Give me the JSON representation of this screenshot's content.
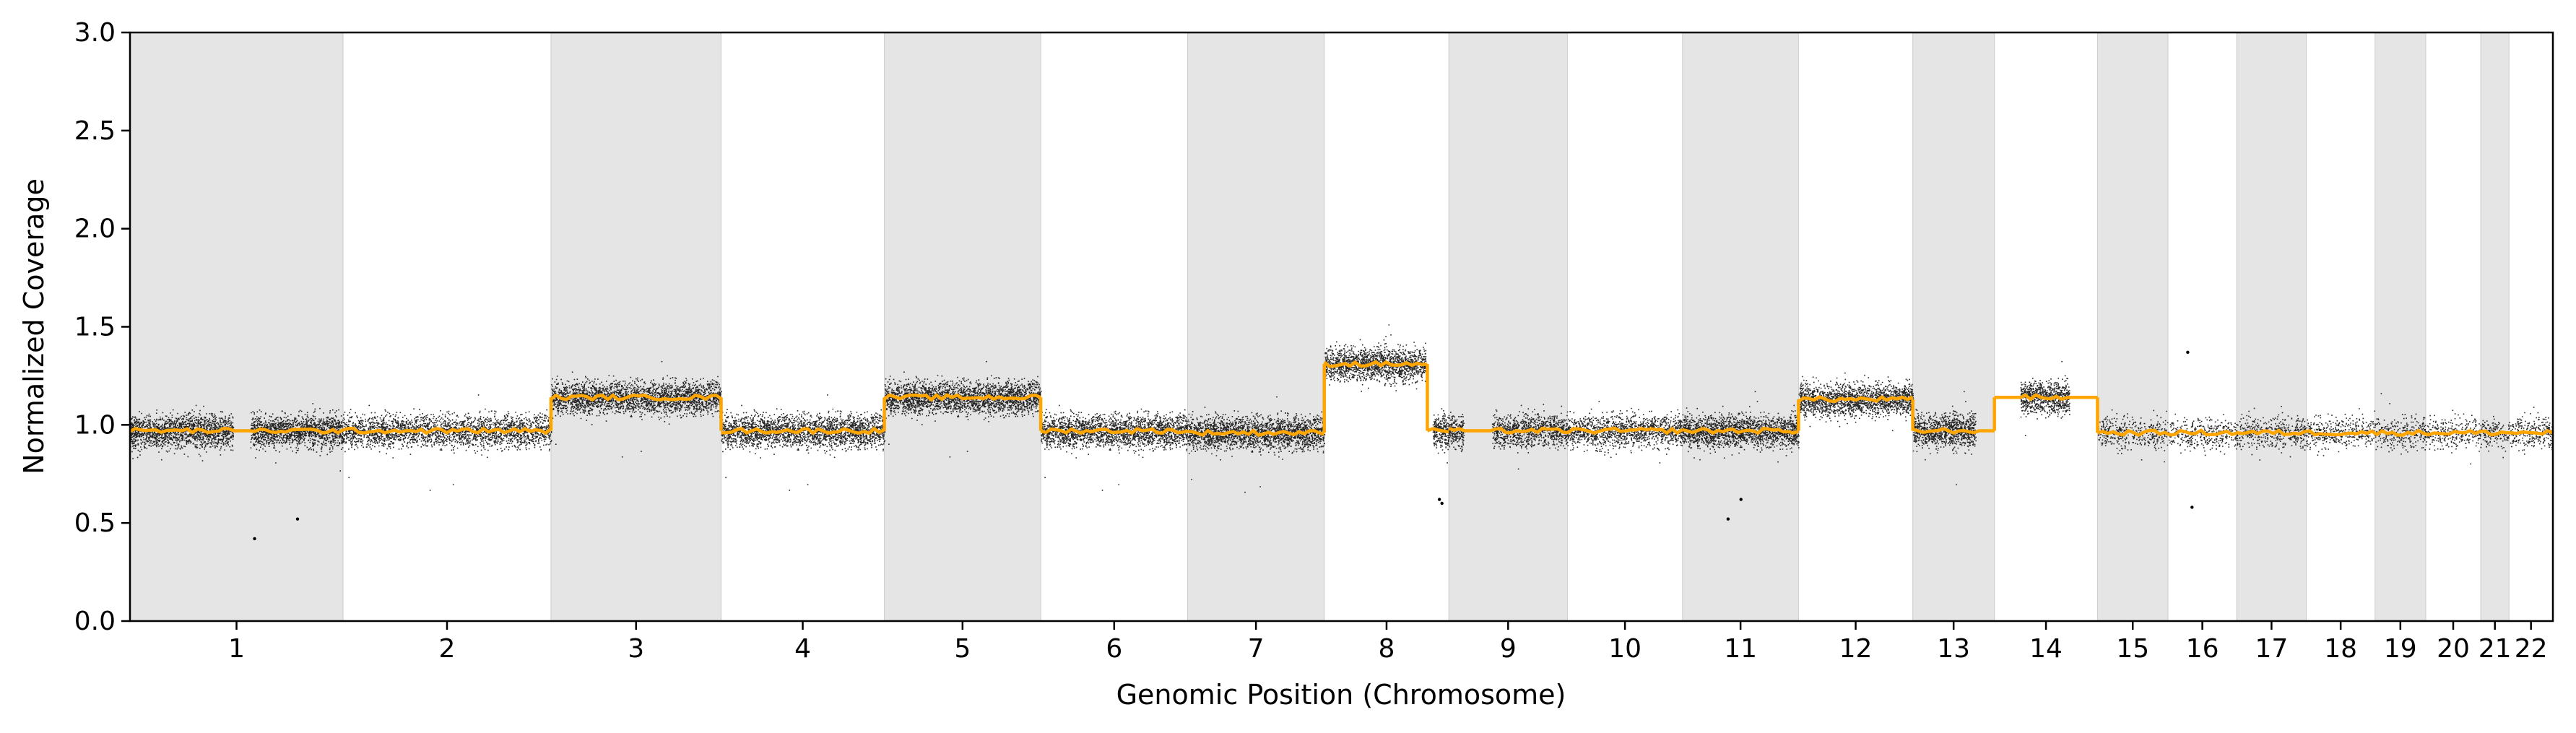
{
  "chart_data": {
    "type": "scatter",
    "title": "",
    "xlabel": "Genomic Position (Chromosome)",
    "ylabel": "Normalized Coverage",
    "ylim": [
      0,
      3
    ],
    "yticks": [
      0.0,
      0.5,
      1.0,
      1.5,
      2.0,
      2.5,
      3.0
    ],
    "ytick_labels": [
      "0.0",
      "0.5",
      "1.0",
      "1.5",
      "2.0",
      "2.5",
      "3.0"
    ],
    "grid": false,
    "legend": "none",
    "colors": {
      "points": "#000000",
      "segments": "#ffa500",
      "band_shade": "#e5e5e5"
    },
    "chromosomes": [
      {
        "label": "1",
        "start": 0,
        "end": 248,
        "shaded": true
      },
      {
        "label": "2",
        "start": 248,
        "end": 490,
        "shaded": false
      },
      {
        "label": "3",
        "start": 490,
        "end": 688,
        "shaded": true
      },
      {
        "label": "4",
        "start": 688,
        "end": 878,
        "shaded": false
      },
      {
        "label": "5",
        "start": 878,
        "end": 1060,
        "shaded": true
      },
      {
        "label": "6",
        "start": 1060,
        "end": 1231,
        "shaded": false
      },
      {
        "label": "7",
        "start": 1231,
        "end": 1390,
        "shaded": true
      },
      {
        "label": "8",
        "start": 1390,
        "end": 1535,
        "shaded": false
      },
      {
        "label": "9",
        "start": 1535,
        "end": 1673,
        "shaded": true
      },
      {
        "label": "10",
        "start": 1673,
        "end": 1807,
        "shaded": false
      },
      {
        "label": "11",
        "start": 1807,
        "end": 1942,
        "shaded": true
      },
      {
        "label": "12",
        "start": 1942,
        "end": 2075,
        "shaded": false
      },
      {
        "label": "13",
        "start": 2075,
        "end": 2170,
        "shaded": true
      },
      {
        "label": "14",
        "start": 2170,
        "end": 2290,
        "shaded": false
      },
      {
        "label": "15",
        "start": 2290,
        "end": 2372,
        "shaded": true
      },
      {
        "label": "16",
        "start": 2372,
        "end": 2452,
        "shaded": false
      },
      {
        "label": "17",
        "start": 2452,
        "end": 2533,
        "shaded": true
      },
      {
        "label": "18",
        "start": 2533,
        "end": 2613,
        "shaded": false
      },
      {
        "label": "19",
        "start": 2613,
        "end": 2672,
        "shaded": true
      },
      {
        "label": "20",
        "start": 2672,
        "end": 2736,
        "shaded": false
      },
      {
        "label": "21",
        "start": 2736,
        "end": 2769,
        "shaded": true
      },
      {
        "label": "22",
        "start": 2769,
        "end": 2820,
        "shaded": false
      }
    ],
    "gaps": [
      [
        120,
        140
      ],
      [
        1508,
        1516
      ],
      [
        1552,
        1585
      ],
      [
        2148,
        2170
      ],
      [
        2170,
        2200
      ],
      [
        2257,
        2290
      ]
    ],
    "segments": [
      {
        "x0": 0,
        "x1": 248,
        "y": 0.97
      },
      {
        "x0": 248,
        "x1": 490,
        "y": 0.97
      },
      {
        "x0": 490,
        "x1": 688,
        "y": 1.14
      },
      {
        "x0": 688,
        "x1": 878,
        "y": 0.97
      },
      {
        "x0": 878,
        "x1": 1060,
        "y": 1.14
      },
      {
        "x0": 1060,
        "x1": 1231,
        "y": 0.97
      },
      {
        "x0": 1231,
        "x1": 1390,
        "y": 0.96
      },
      {
        "x0": 1390,
        "x1": 1510,
        "y": 1.31
      },
      {
        "x0": 1510,
        "x1": 1535,
        "y": 0.97
      },
      {
        "x0": 1535,
        "x1": 1807,
        "y": 0.97
      },
      {
        "x0": 1807,
        "x1": 1942,
        "y": 0.97
      },
      {
        "x0": 1942,
        "x1": 2075,
        "y": 1.13
      },
      {
        "x0": 2075,
        "x1": 2170,
        "y": 0.97
      },
      {
        "x0": 2170,
        "x1": 2290,
        "y": 1.14
      },
      {
        "x0": 2290,
        "x1": 2820,
        "y": 0.96
      }
    ],
    "outliers": [
      {
        "x": 145,
        "y": 0.42
      },
      {
        "x": 195,
        "y": 0.52
      },
      {
        "x": 1524,
        "y": 0.62
      },
      {
        "x": 1527,
        "y": 0.6
      },
      {
        "x": 1860,
        "y": 0.52
      },
      {
        "x": 1875,
        "y": 0.62
      },
      {
        "x": 2395,
        "y": 1.37
      },
      {
        "x": 2400,
        "y": 0.58
      }
    ],
    "point_cloud_sd": 0.04,
    "point_density_per_unit": 14
  }
}
